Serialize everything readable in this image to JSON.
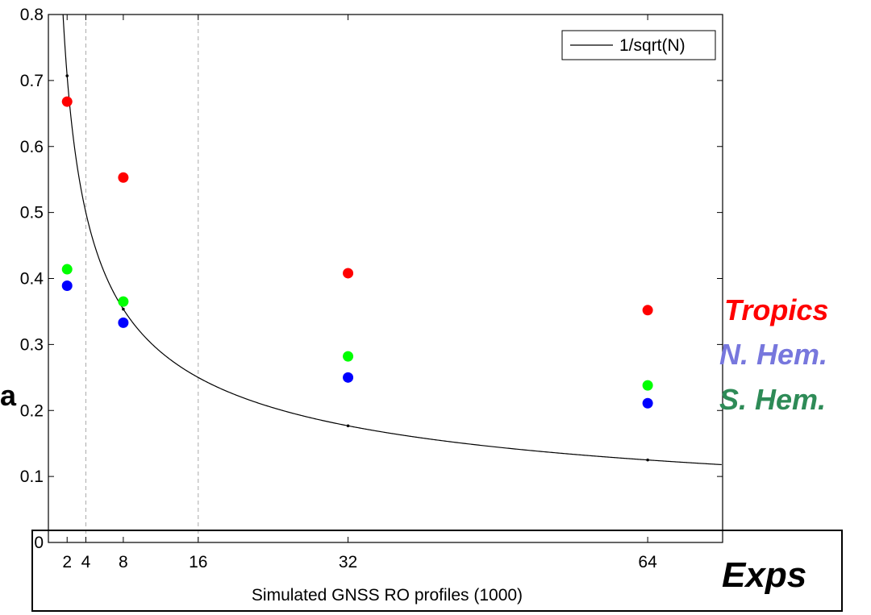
{
  "chart_data": {
    "type": "scatter",
    "xlabel": "Simulated GNSS RO profiles (1000)",
    "ylabel": "",
    "xlim": [
      0,
      72
    ],
    "ylim": [
      0,
      0.8
    ],
    "x_ticks": [
      2,
      4,
      8,
      16,
      32,
      64
    ],
    "y_ticks": [
      0,
      0.1,
      0.2,
      0.3,
      0.4,
      0.5,
      0.6,
      0.7,
      0.8
    ],
    "reference_lines_x": [
      4,
      16
    ],
    "grid": false,
    "legend": {
      "position": "top-right",
      "entries": [
        "1/sqrt(N)"
      ]
    },
    "curve": {
      "name": "1/sqrt(N)",
      "formula": "1/sqrt(N)",
      "marked_x": [
        2,
        8,
        32,
        64
      ]
    },
    "series": [
      {
        "name": "Tropics",
        "color": "#ff0000",
        "x": [
          2,
          8,
          32,
          64
        ],
        "y": [
          0.668,
          0.553,
          0.408,
          0.352
        ]
      },
      {
        "name": "S. Hem.",
        "color": "#00ff00",
        "x": [
          2,
          8,
          32,
          64
        ],
        "y": [
          0.414,
          0.365,
          0.282,
          0.238
        ]
      },
      {
        "name": "N. Hem.",
        "color": "#0000ff",
        "x": [
          2,
          8,
          32,
          64
        ],
        "y": [
          0.389,
          0.333,
          0.25,
          0.211
        ]
      }
    ],
    "annotations": {
      "tropics": {
        "text": "Tropics",
        "color": "#ff0000"
      },
      "nhem": {
        "text": "N. Hem.",
        "color": "#7777dd"
      },
      "shem": {
        "text": "S. Hem.",
        "color": "#2e8b57"
      },
      "exps": "Exps",
      "side_letter": "a"
    }
  }
}
